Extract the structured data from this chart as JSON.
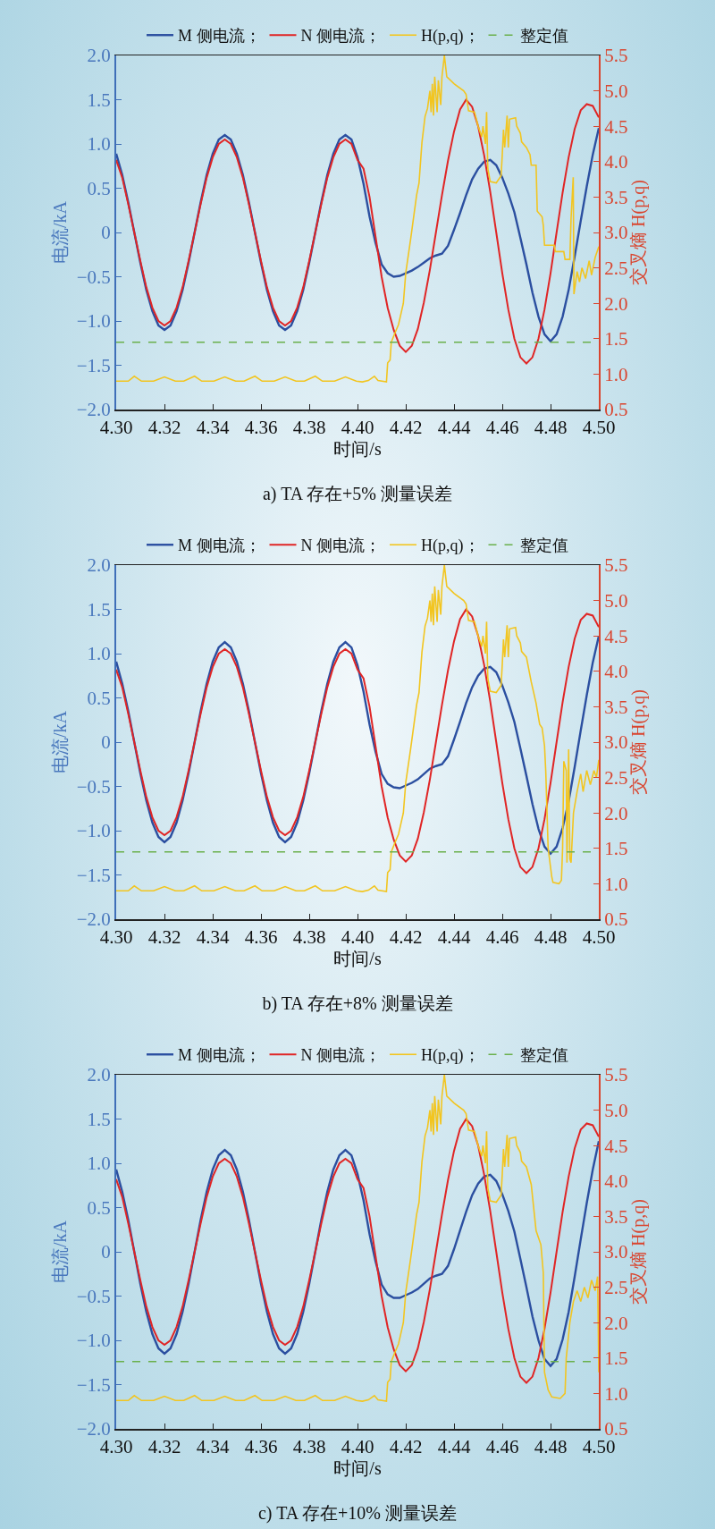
{
  "chart_data": [
    {
      "type": "line",
      "title": "a) TA 存在+5% 测量误差",
      "xlabel": "时间/s",
      "ylabel": "电流/kA",
      "y2label": "交叉熵 H(p,q)",
      "legend": "top",
      "grid": false,
      "x": [
        4.3,
        4.3025,
        4.305,
        4.3075,
        4.31,
        4.3125,
        4.315,
        4.3175,
        4.32,
        4.3225,
        4.325,
        4.3275,
        4.33,
        4.3325,
        4.335,
        4.3375,
        4.34,
        4.3425,
        4.345,
        4.3475,
        4.35,
        4.3525,
        4.355,
        4.3575,
        4.36,
        4.3625,
        4.365,
        4.3675,
        4.37,
        4.3725,
        4.375,
        4.3775,
        4.38,
        4.3825,
        4.385,
        4.3875,
        4.39,
        4.3925,
        4.395,
        4.3975,
        4.4,
        4.4025,
        4.405,
        4.4075,
        4.41,
        4.4125,
        4.415,
        4.4175,
        4.42,
        4.4225,
        4.425,
        4.4275,
        4.43,
        4.4325,
        4.435,
        4.4375,
        4.44,
        4.4425,
        4.445,
        4.4475,
        4.45,
        4.4525,
        4.455,
        4.4575,
        4.46,
        4.4625,
        4.465,
        4.4675,
        4.47,
        4.4725,
        4.475,
        4.4775,
        4.48,
        4.4825,
        4.485,
        4.4875,
        4.49,
        4.4925,
        4.495,
        4.4975,
        4.5
      ],
      "series": [
        {
          "name": "M 侧电流；",
          "color": "#2b4fa0",
          "values": [
            0.89,
            0.65,
            0.34,
            0,
            -0.34,
            -0.65,
            -0.89,
            -1.05,
            -1.1,
            -1.05,
            -0.89,
            -0.65,
            -0.34,
            0,
            0.34,
            0.65,
            0.89,
            1.05,
            1.1,
            1.05,
            0.89,
            0.65,
            0.34,
            0,
            -0.34,
            -0.65,
            -0.89,
            -1.05,
            -1.1,
            -1.05,
            -0.89,
            -0.65,
            -0.34,
            0,
            0.34,
            0.65,
            0.89,
            1.05,
            1.1,
            1.05,
            0.85,
            0.55,
            0.18,
            -0.12,
            -0.36,
            -0.46,
            -0.5,
            -0.49,
            -0.46,
            -0.43,
            -0.39,
            -0.34,
            -0.29,
            -0.26,
            -0.24,
            -0.15,
            0.03,
            0.22,
            0.42,
            0.6,
            0.72,
            0.8,
            0.82,
            0.76,
            0.62,
            0.44,
            0.23,
            -0.06,
            -0.36,
            -0.68,
            -0.95,
            -1.15,
            -1.23,
            -1.15,
            -0.95,
            -0.65,
            -0.27,
            0.13,
            0.52,
            0.88,
            1.18
          ]
        },
        {
          "name": "N 侧电流；",
          "color": "#e02525",
          "values": [
            0.82,
            0.62,
            0.32,
            0,
            -0.32,
            -0.62,
            -0.85,
            -1.0,
            -1.05,
            -1.0,
            -0.85,
            -0.62,
            -0.32,
            0,
            0.32,
            0.62,
            0.85,
            1.0,
            1.05,
            1.0,
            0.85,
            0.62,
            0.32,
            0,
            -0.32,
            -0.62,
            -0.85,
            -1.0,
            -1.05,
            -1.0,
            -0.85,
            -0.62,
            -0.32,
            0,
            0.32,
            0.62,
            0.85,
            1.0,
            1.05,
            1.0,
            0.82,
            0.72,
            0.4,
            -0.05,
            -0.5,
            -0.85,
            -1.1,
            -1.28,
            -1.35,
            -1.28,
            -1.09,
            -0.79,
            -0.42,
            0,
            0.42,
            0.81,
            1.14,
            1.39,
            1.5,
            1.42,
            1.2,
            0.87,
            0.46,
            0,
            -0.46,
            -0.87,
            -1.2,
            -1.41,
            -1.48,
            -1.41,
            -1.2,
            -0.87,
            -0.46,
            0,
            0.45,
            0.85,
            1.17,
            1.38,
            1.45,
            1.43,
            1.3
          ]
        },
        {
          "name": "H(p,q)；",
          "color": "#f2c520",
          "axis": "y2",
          "x": [
            4.3,
            4.305,
            4.3075,
            4.3105,
            4.3155,
            4.32,
            4.3245,
            4.328,
            4.3325,
            4.3355,
            4.3405,
            4.345,
            4.3495,
            4.353,
            4.3575,
            4.3605,
            4.3655,
            4.37,
            4.3745,
            4.378,
            4.3825,
            4.3855,
            4.3905,
            4.395,
            4.3995,
            4.402,
            4.4045,
            4.407,
            4.4085,
            4.412,
            4.4125,
            4.4135,
            4.414,
            4.4155,
            4.417,
            4.419,
            4.42,
            4.422,
            4.4245,
            4.4255,
            4.4267,
            4.428,
            4.429,
            4.43,
            4.4305,
            4.431,
            4.4315,
            4.432,
            4.433,
            4.4335,
            4.4345,
            4.435,
            4.436,
            4.437,
            4.44,
            4.444,
            4.445,
            4.446,
            4.4485,
            4.45,
            4.4515,
            4.452,
            4.453,
            4.4535,
            4.454,
            4.455,
            4.4575,
            4.4595,
            4.46,
            4.4605,
            4.461,
            4.462,
            4.4625,
            4.463,
            4.4655,
            4.466,
            4.4675,
            4.468,
            4.47,
            4.4715,
            4.472,
            4.474,
            4.4745,
            4.4765,
            4.477,
            4.4775,
            4.4815,
            4.482,
            4.4855,
            4.486,
            4.488,
            4.4885,
            4.4894,
            4.4897,
            4.491,
            4.492,
            4.493,
            4.4945,
            4.496,
            4.497,
            4.4985,
            4.5
          ],
          "values": [
            0.9,
            0.9,
            0.97,
            0.9,
            0.9,
            0.96,
            0.9,
            0.9,
            0.97,
            0.9,
            0.9,
            0.96,
            0.9,
            0.9,
            0.97,
            0.9,
            0.9,
            0.96,
            0.9,
            0.9,
            0.97,
            0.9,
            0.9,
            0.96,
            0.9,
            0.89,
            0.91,
            0.97,
            0.91,
            0.89,
            1.16,
            1.2,
            1.45,
            1.58,
            1.7,
            2.0,
            2.43,
            2.9,
            3.53,
            3.7,
            4.27,
            4.64,
            4.75,
            5.0,
            4.7,
            5.1,
            4.65,
            5.2,
            4.7,
            5.15,
            4.8,
            5.2,
            5.5,
            5.2,
            5.1,
            5.0,
            4.95,
            4.72,
            4.7,
            4.5,
            4.35,
            4.5,
            4.25,
            4.7,
            3.9,
            3.72,
            3.7,
            3.8,
            4.1,
            4.45,
            4.2,
            4.65,
            4.2,
            4.6,
            4.62,
            4.5,
            4.4,
            4.28,
            4.2,
            4.1,
            3.95,
            3.95,
            3.3,
            3.22,
            3.1,
            2.82,
            2.82,
            2.73,
            2.73,
            2.62,
            2.62,
            3.2,
            3.78,
            2.13,
            2.45,
            2.3,
            2.5,
            2.35,
            2.6,
            2.4,
            2.65,
            2.8
          ]
        }
      ],
      "ref_lines": [
        {
          "axis": "y2",
          "value": 1.45,
          "label": "整定值",
          "color": "#6ab04c",
          "line_style": "dashed"
        }
      ],
      "xlim": [
        4.3,
        4.5
      ],
      "xticks": [
        {
          "value": 4.3,
          "label": "4.30"
        },
        4.32,
        4.34,
        4.36,
        4.38,
        {
          "value": 4.4,
          "label": "4.40"
        },
        4.42,
        4.44,
        4.46,
        4.48,
        {
          "value": 4.5,
          "label": "4.50"
        }
      ],
      "ylim": [
        -2,
        2
      ],
      "yticks": [
        {
          "value": -2,
          "label": "−2.0"
        },
        {
          "value": -1.5,
          "label": "−1.5"
        },
        {
          "value": -1,
          "label": "−1.0"
        },
        {
          "value": -0.5,
          "label": "−0.5"
        },
        0,
        0.5,
        {
          "value": 1,
          "label": "1.0"
        },
        1.5,
        {
          "value": 2,
          "label": "2.0"
        }
      ],
      "y2lim": [
        0.5,
        5.5
      ],
      "y2ticks": [
        0.5,
        {
          "value": 1,
          "label": "1.0"
        },
        1.5,
        {
          "value": 2,
          "label": "2.0"
        },
        2.5,
        {
          "value": 3,
          "label": "3.0"
        },
        3.5,
        {
          "value": 4,
          "label": "4.0"
        },
        4.5,
        {
          "value": 5,
          "label": "5.0"
        },
        5.5
      ]
    },
    {
      "type": "line",
      "title": "b) TA 存在+8% 测量误差",
      "xlabel": "时间/s",
      "ylabel": "电流/kA",
      "y2label": "交叉熵 H(p,q)",
      "legend": "top",
      "grid": false,
      "x": [
        4.3,
        4.3025,
        4.305,
        4.3075,
        4.31,
        4.3125,
        4.315,
        4.3175,
        4.32,
        4.3225,
        4.325,
        4.3275,
        4.33,
        4.3325,
        4.335,
        4.3375,
        4.34,
        4.3425,
        4.345,
        4.3475,
        4.35,
        4.3525,
        4.355,
        4.3575,
        4.36,
        4.3625,
        4.365,
        4.3675,
        4.37,
        4.3725,
        4.375,
        4.3775,
        4.38,
        4.3825,
        4.385,
        4.3875,
        4.39,
        4.3925,
        4.395,
        4.3975,
        4.4,
        4.4025,
        4.405,
        4.4075,
        4.41,
        4.4125,
        4.415,
        4.4175,
        4.42,
        4.4225,
        4.425,
        4.4275,
        4.43,
        4.4325,
        4.435,
        4.4375,
        4.44,
        4.4425,
        4.445,
        4.4475,
        4.45,
        4.4525,
        4.455,
        4.4575,
        4.46,
        4.4625,
        4.465,
        4.4675,
        4.47,
        4.4725,
        4.475,
        4.4775,
        4.48,
        4.4825,
        4.485,
        4.4875,
        4.49,
        4.4925,
        4.495,
        4.4975,
        4.5
      ],
      "series": [
        {
          "name": "M 侧电流；",
          "color": "#2b4fa0",
          "values": [
            0.91,
            0.66,
            0.35,
            0,
            -0.35,
            -0.66,
            -0.91,
            -1.07,
            -1.13,
            -1.07,
            -0.91,
            -0.66,
            -0.35,
            0,
            0.35,
            0.66,
            0.91,
            1.07,
            1.13,
            1.07,
            0.91,
            0.66,
            0.35,
            0,
            -0.35,
            -0.66,
            -0.91,
            -1.07,
            -1.13,
            -1.07,
            -0.91,
            -0.66,
            -0.35,
            0,
            0.35,
            0.66,
            0.91,
            1.07,
            1.13,
            1.07,
            0.87,
            0.57,
            0.2,
            -0.11,
            -0.36,
            -0.47,
            -0.51,
            -0.52,
            -0.49,
            -0.46,
            -0.42,
            -0.36,
            -0.3,
            -0.27,
            -0.25,
            -0.16,
            0.03,
            0.23,
            0.44,
            0.62,
            0.75,
            0.83,
            0.85,
            0.79,
            0.64,
            0.45,
            0.23,
            -0.07,
            -0.38,
            -0.7,
            -0.98,
            -1.18,
            -1.26,
            -1.18,
            -0.97,
            -0.67,
            -0.28,
            0.13,
            0.53,
            0.9,
            1.2
          ]
        },
        {
          "name": "N 侧电流；",
          "color": "#e02525",
          "values": [
            0.82,
            0.62,
            0.32,
            0,
            -0.32,
            -0.62,
            -0.85,
            -1.0,
            -1.05,
            -1.0,
            -0.85,
            -0.62,
            -0.32,
            0,
            0.32,
            0.62,
            0.85,
            1.0,
            1.05,
            1.0,
            0.85,
            0.62,
            0.32,
            0,
            -0.32,
            -0.62,
            -0.85,
            -1.0,
            -1.05,
            -1.0,
            -0.85,
            -0.62,
            -0.32,
            0,
            0.32,
            0.62,
            0.85,
            1.0,
            1.05,
            1.0,
            0.82,
            0.72,
            0.4,
            -0.05,
            -0.5,
            -0.85,
            -1.1,
            -1.28,
            -1.35,
            -1.28,
            -1.09,
            -0.79,
            -0.42,
            0,
            0.42,
            0.81,
            1.14,
            1.39,
            1.5,
            1.42,
            1.2,
            0.87,
            0.46,
            0,
            -0.46,
            -0.87,
            -1.2,
            -1.41,
            -1.48,
            -1.41,
            -1.2,
            -0.87,
            -0.46,
            0,
            0.45,
            0.85,
            1.17,
            1.38,
            1.45,
            1.43,
            1.3
          ]
        },
        {
          "name": "H(p,q)；",
          "color": "#f2c520",
          "axis": "y2",
          "x": [
            4.3,
            4.305,
            4.3075,
            4.3105,
            4.3155,
            4.32,
            4.3245,
            4.328,
            4.3325,
            4.3355,
            4.3405,
            4.345,
            4.3495,
            4.353,
            4.3575,
            4.3605,
            4.3655,
            4.37,
            4.3745,
            4.378,
            4.3825,
            4.3855,
            4.3905,
            4.395,
            4.3995,
            4.402,
            4.4045,
            4.407,
            4.4085,
            4.412,
            4.4125,
            4.4135,
            4.414,
            4.4155,
            4.417,
            4.419,
            4.42,
            4.422,
            4.4245,
            4.4255,
            4.4267,
            4.428,
            4.429,
            4.43,
            4.4305,
            4.431,
            4.4315,
            4.432,
            4.433,
            4.4335,
            4.4345,
            4.435,
            4.436,
            4.437,
            4.44,
            4.444,
            4.445,
            4.446,
            4.4485,
            4.45,
            4.4515,
            4.452,
            4.453,
            4.4535,
            4.454,
            4.455,
            4.4575,
            4.4595,
            4.46,
            4.4605,
            4.461,
            4.462,
            4.4625,
            4.463,
            4.4655,
            4.466,
            4.4675,
            4.468,
            4.47,
            4.472,
            4.474,
            4.4755,
            4.4765,
            4.4775,
            4.478,
            4.479,
            4.4805,
            4.481,
            4.4835,
            4.4845,
            4.485,
            4.4855,
            4.4865,
            4.4868,
            4.4875,
            4.488,
            4.4885,
            4.4895,
            4.491,
            4.4925,
            4.4935,
            4.495,
            4.4965,
            4.498,
            4.499,
            4.5
          ],
          "values": [
            0.9,
            0.9,
            0.97,
            0.9,
            0.9,
            0.96,
            0.9,
            0.9,
            0.97,
            0.9,
            0.9,
            0.96,
            0.9,
            0.9,
            0.97,
            0.9,
            0.9,
            0.96,
            0.9,
            0.9,
            0.97,
            0.9,
            0.9,
            0.96,
            0.9,
            0.89,
            0.91,
            0.97,
            0.91,
            0.89,
            1.16,
            1.2,
            1.45,
            1.58,
            1.7,
            2.0,
            2.43,
            2.9,
            3.53,
            3.7,
            4.27,
            4.64,
            4.75,
            5.0,
            4.7,
            5.1,
            4.65,
            5.2,
            4.7,
            5.15,
            4.8,
            5.2,
            5.5,
            5.2,
            5.1,
            5.0,
            4.95,
            4.72,
            4.7,
            4.5,
            4.35,
            4.5,
            4.25,
            4.7,
            3.9,
            3.72,
            3.7,
            3.8,
            4.1,
            4.45,
            4.2,
            4.65,
            4.2,
            4.6,
            4.62,
            4.5,
            4.4,
            4.28,
            4.2,
            3.85,
            3.55,
            3.25,
            3.2,
            2.95,
            2.6,
            1.5,
            1.1,
            1.02,
            1.0,
            1.05,
            1.5,
            2.73,
            2.6,
            1.3,
            2.9,
            1.35,
            1.3,
            2.0,
            2.3,
            2.55,
            2.3,
            2.6,
            2.4,
            2.6,
            2.5,
            2.75
          ]
        }
      ],
      "ref_lines": [
        {
          "axis": "y2",
          "value": 1.45,
          "label": "整定值",
          "color": "#6ab04c",
          "line_style": "dashed"
        }
      ],
      "xlim": [
        4.3,
        4.5
      ],
      "xticks": [
        {
          "value": 4.3,
          "label": "4.30"
        },
        4.32,
        4.34,
        4.36,
        4.38,
        {
          "value": 4.4,
          "label": "4.40"
        },
        4.42,
        4.44,
        4.46,
        4.48,
        {
          "value": 4.5,
          "label": "4.50"
        }
      ],
      "ylim": [
        -2,
        2
      ],
      "yticks": [
        {
          "value": -2,
          "label": "−2.0"
        },
        {
          "value": -1.5,
          "label": "−1.5"
        },
        {
          "value": -1,
          "label": "−1.0"
        },
        {
          "value": -0.5,
          "label": "−0.5"
        },
        0,
        0.5,
        {
          "value": 1,
          "label": "1.0"
        },
        1.5,
        {
          "value": 2,
          "label": "2.0"
        }
      ],
      "y2lim": [
        0.5,
        5.5
      ],
      "y2ticks": [
        0.5,
        {
          "value": 1,
          "label": "1.0"
        },
        1.5,
        {
          "value": 2,
          "label": "2.0"
        },
        2.5,
        {
          "value": 3,
          "label": "3.0"
        },
        3.5,
        {
          "value": 4,
          "label": "4.0"
        },
        4.5,
        {
          "value": 5,
          "label": "5.0"
        },
        5.5
      ]
    },
    {
      "type": "line",
      "title": "c) TA 存在+10% 测量误差",
      "xlabel": "时间/s",
      "ylabel": "电流/kA",
      "y2label": "交叉熵 H(p,q)",
      "legend": "top",
      "grid": false,
      "x": [
        4.3,
        4.3025,
        4.305,
        4.3075,
        4.31,
        4.3125,
        4.315,
        4.3175,
        4.32,
        4.3225,
        4.325,
        4.3275,
        4.33,
        4.3325,
        4.335,
        4.3375,
        4.34,
        4.3425,
        4.345,
        4.3475,
        4.35,
        4.3525,
        4.355,
        4.3575,
        4.36,
        4.3625,
        4.365,
        4.3675,
        4.37,
        4.3725,
        4.375,
        4.3775,
        4.38,
        4.3825,
        4.385,
        4.3875,
        4.39,
        4.3925,
        4.395,
        4.3975,
        4.4,
        4.4025,
        4.405,
        4.4075,
        4.41,
        4.4125,
        4.415,
        4.4175,
        4.42,
        4.4225,
        4.425,
        4.4275,
        4.43,
        4.4325,
        4.435,
        4.4375,
        4.44,
        4.4425,
        4.445,
        4.4475,
        4.45,
        4.4525,
        4.455,
        4.4575,
        4.46,
        4.4625,
        4.465,
        4.4675,
        4.47,
        4.4725,
        4.475,
        4.4775,
        4.48,
        4.4825,
        4.485,
        4.4875,
        4.49,
        4.4925,
        4.495,
        4.4975,
        4.5
      ],
      "series": [
        {
          "name": "M 侧电流；",
          "color": "#2b4fa0",
          "values": [
            0.93,
            0.68,
            0.36,
            0,
            -0.36,
            -0.68,
            -0.93,
            -1.09,
            -1.15,
            -1.09,
            -0.93,
            -0.68,
            -0.36,
            0,
            0.36,
            0.68,
            0.93,
            1.09,
            1.15,
            1.09,
            0.93,
            0.68,
            0.36,
            0,
            -0.36,
            -0.68,
            -0.93,
            -1.09,
            -1.15,
            -1.09,
            -0.93,
            -0.68,
            -0.36,
            0,
            0.36,
            0.68,
            0.93,
            1.09,
            1.15,
            1.09,
            0.88,
            0.58,
            0.2,
            -0.11,
            -0.37,
            -0.48,
            -0.52,
            -0.52,
            -0.49,
            -0.46,
            -0.42,
            -0.36,
            -0.3,
            -0.27,
            -0.25,
            -0.16,
            0.03,
            0.24,
            0.45,
            0.64,
            0.77,
            0.85,
            0.87,
            0.8,
            0.65,
            0.46,
            0.23,
            -0.08,
            -0.4,
            -0.73,
            -1.0,
            -1.21,
            -1.29,
            -1.21,
            -0.99,
            -0.68,
            -0.28,
            0.14,
            0.55,
            0.93,
            1.25
          ]
        },
        {
          "name": "N 侧电流；",
          "color": "#e02525",
          "values": [
            0.82,
            0.62,
            0.32,
            0,
            -0.32,
            -0.62,
            -0.85,
            -1.0,
            -1.05,
            -1.0,
            -0.85,
            -0.62,
            -0.32,
            0,
            0.32,
            0.62,
            0.85,
            1.0,
            1.05,
            1.0,
            0.85,
            0.62,
            0.32,
            0,
            -0.32,
            -0.62,
            -0.85,
            -1.0,
            -1.05,
            -1.0,
            -0.85,
            -0.62,
            -0.32,
            0,
            0.32,
            0.62,
            0.85,
            1.0,
            1.05,
            1.0,
            0.82,
            0.72,
            0.4,
            -0.05,
            -0.5,
            -0.85,
            -1.1,
            -1.28,
            -1.35,
            -1.28,
            -1.09,
            -0.79,
            -0.42,
            0,
            0.42,
            0.81,
            1.14,
            1.39,
            1.5,
            1.42,
            1.2,
            0.87,
            0.46,
            0,
            -0.46,
            -0.87,
            -1.2,
            -1.41,
            -1.48,
            -1.41,
            -1.2,
            -0.87,
            -0.46,
            0,
            0.45,
            0.85,
            1.17,
            1.38,
            1.45,
            1.43,
            1.3
          ]
        },
        {
          "name": "H(p,q)；",
          "color": "#f2c520",
          "axis": "y2",
          "x": [
            4.3,
            4.305,
            4.3075,
            4.3105,
            4.3155,
            4.32,
            4.3245,
            4.328,
            4.3325,
            4.3355,
            4.3405,
            4.345,
            4.3495,
            4.353,
            4.3575,
            4.3605,
            4.3655,
            4.37,
            4.3745,
            4.378,
            4.3825,
            4.3855,
            4.3905,
            4.395,
            4.3995,
            4.402,
            4.4045,
            4.407,
            4.4085,
            4.412,
            4.4125,
            4.4135,
            4.414,
            4.4155,
            4.417,
            4.419,
            4.42,
            4.422,
            4.4245,
            4.4255,
            4.4267,
            4.428,
            4.429,
            4.43,
            4.4305,
            4.431,
            4.4315,
            4.432,
            4.433,
            4.4335,
            4.4345,
            4.435,
            4.436,
            4.437,
            4.44,
            4.444,
            4.445,
            4.446,
            4.4485,
            4.45,
            4.4515,
            4.452,
            4.453,
            4.4535,
            4.454,
            4.455,
            4.4575,
            4.4595,
            4.46,
            4.4605,
            4.461,
            4.462,
            4.4625,
            4.463,
            4.4655,
            4.466,
            4.4675,
            4.468,
            4.47,
            4.472,
            4.474,
            4.476,
            4.4765,
            4.477,
            4.4775,
            4.479,
            4.4805,
            4.484,
            4.486,
            4.4865,
            4.488,
            4.4895,
            4.491,
            4.4925,
            4.494,
            4.4955,
            4.497,
            4.4985,
            4.4995,
            4.5
          ],
          "values": [
            0.9,
            0.9,
            0.97,
            0.9,
            0.9,
            0.96,
            0.9,
            0.9,
            0.97,
            0.9,
            0.9,
            0.96,
            0.9,
            0.9,
            0.97,
            0.9,
            0.9,
            0.96,
            0.9,
            0.9,
            0.97,
            0.9,
            0.9,
            0.96,
            0.9,
            0.89,
            0.91,
            0.97,
            0.91,
            0.89,
            1.16,
            1.2,
            1.45,
            1.58,
            1.7,
            2.0,
            2.43,
            2.9,
            3.53,
            3.7,
            4.27,
            4.64,
            4.75,
            5.0,
            4.7,
            5.1,
            4.65,
            5.2,
            4.7,
            5.15,
            4.8,
            5.2,
            5.5,
            5.2,
            5.1,
            5.0,
            4.95,
            4.72,
            4.7,
            4.5,
            4.35,
            4.5,
            4.25,
            4.7,
            3.9,
            3.72,
            3.7,
            3.8,
            4.1,
            4.45,
            4.2,
            4.65,
            4.2,
            4.6,
            4.62,
            4.5,
            4.4,
            4.28,
            4.2,
            3.95,
            3.3,
            3.1,
            2.9,
            2.7,
            1.3,
            1.05,
            0.95,
            0.93,
            1.0,
            1.5,
            2.0,
            2.3,
            2.45,
            2.3,
            2.5,
            2.35,
            2.6,
            2.45,
            2.65,
            1.3
          ]
        }
      ],
      "ref_lines": [
        {
          "axis": "y2",
          "value": 1.45,
          "label": "整定值",
          "color": "#6ab04c",
          "line_style": "dashed"
        }
      ],
      "xlim": [
        4.3,
        4.5
      ],
      "xticks": [
        {
          "value": 4.3,
          "label": "4.30"
        },
        4.32,
        4.34,
        4.36,
        4.38,
        {
          "value": 4.4,
          "label": "4.40"
        },
        4.42,
        4.44,
        4.46,
        4.48,
        {
          "value": 4.5,
          "label": "4.50"
        }
      ],
      "ylim": [
        -2,
        2
      ],
      "yticks": [
        {
          "value": -2,
          "label": "−2.0"
        },
        {
          "value": -1.5,
          "label": "−1.5"
        },
        {
          "value": -1,
          "label": "−1.0"
        },
        {
          "value": -0.5,
          "label": "−0.5"
        },
        0,
        0.5,
        {
          "value": 1,
          "label": "1.0"
        },
        1.5,
        {
          "value": 2,
          "label": "2.0"
        }
      ],
      "y2lim": [
        0.5,
        5.5
      ],
      "y2ticks": [
        0.5,
        {
          "value": 1,
          "label": "1.0"
        },
        1.5,
        {
          "value": 2,
          "label": "2.0"
        },
        2.5,
        {
          "value": 3,
          "label": "3.0"
        },
        3.5,
        {
          "value": 4,
          "label": "4.0"
        },
        4.5,
        {
          "value": 5,
          "label": "5.0"
        },
        5.5
      ]
    }
  ]
}
